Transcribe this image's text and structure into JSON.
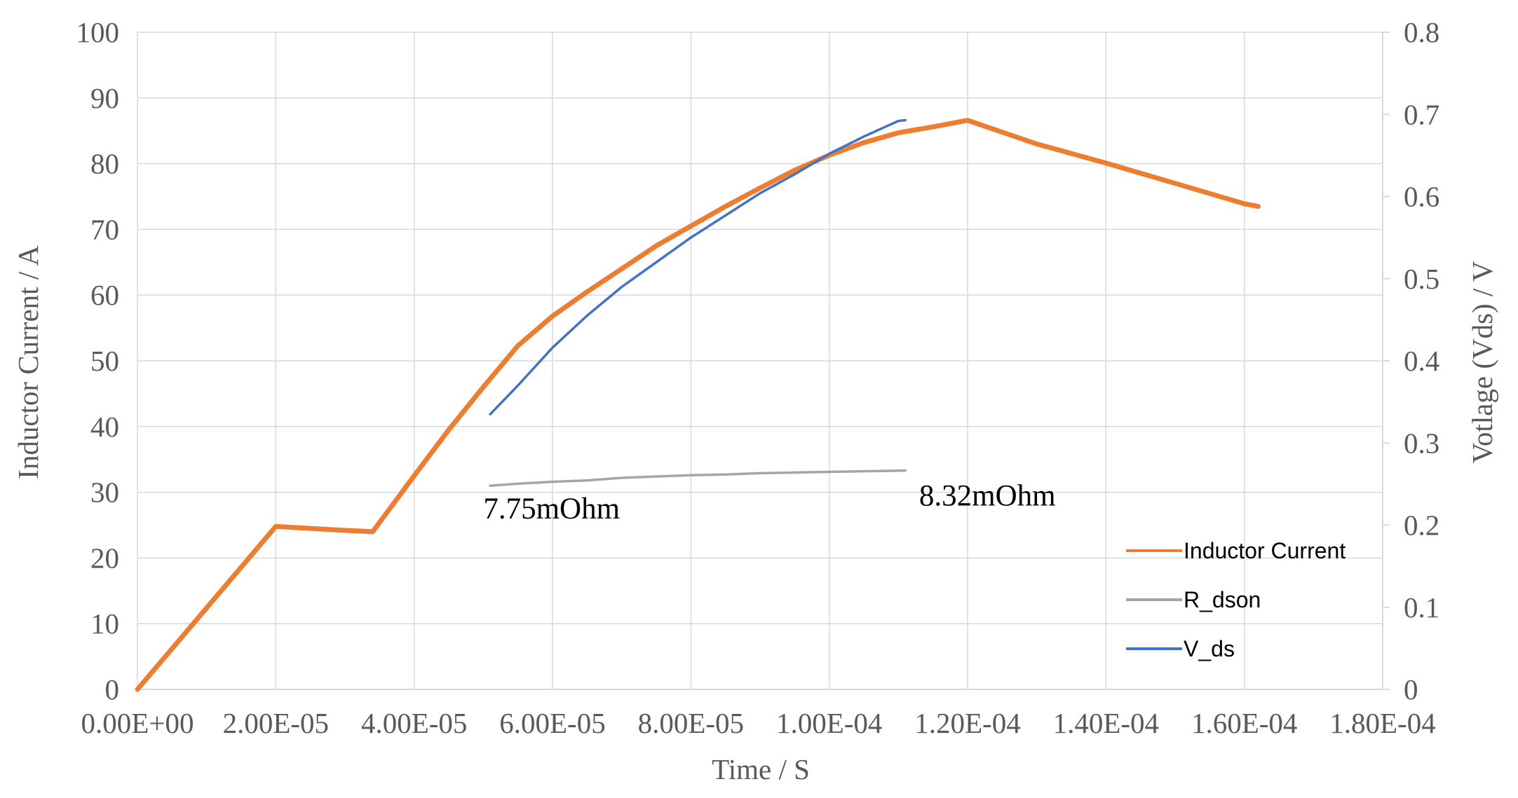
{
  "chart_data": {
    "type": "line",
    "title": "",
    "xlabel": "Time / S",
    "ylabel": "Inductor Current / A",
    "y2label": "Votlage (Vds) / V",
    "xlim": [
      0,
      0.00018
    ],
    "ylim": [
      0,
      100
    ],
    "y2lim": [
      0,
      0.8
    ],
    "x_ticks": [
      0,
      2e-05,
      4e-05,
      6e-05,
      8e-05,
      0.0001,
      0.00012,
      0.00014,
      0.00016,
      0.00018
    ],
    "x_tick_labels": [
      "0.00E+00",
      "2.00E-05",
      "4.00E-05",
      "6.00E-05",
      "8.00E-05",
      "1.00E-04",
      "1.20E-04",
      "1.40E-04",
      "1.60E-04",
      "1.80E-04"
    ],
    "y_ticks": [
      0,
      10,
      20,
      30,
      40,
      50,
      60,
      70,
      80,
      90,
      100
    ],
    "y_tick_labels": [
      "0",
      "10",
      "20",
      "30",
      "40",
      "50",
      "60",
      "70",
      "80",
      "90",
      "100"
    ],
    "y2_ticks": [
      0,
      0.1,
      0.2,
      0.3,
      0.4,
      0.5,
      0.6,
      0.7,
      0.8
    ],
    "y2_tick_labels": [
      "0",
      "0.1",
      "0.2",
      "0.3",
      "0.4",
      "0.5",
      "0.6",
      "0.7",
      "0.8"
    ],
    "grid": true,
    "legend_position": "bottom-right",
    "series": [
      {
        "name": "Inductor Current",
        "color": "#ed7d31",
        "axis": "left",
        "x": [
          0,
          1e-05,
          2e-05,
          2.5e-05,
          3e-05,
          3.4e-05,
          4e-05,
          4.5e-05,
          5e-05,
          5.5e-05,
          6e-05,
          6.5e-05,
          7e-05,
          7.5e-05,
          8e-05,
          8.5e-05,
          9e-05,
          9.5e-05,
          0.0001,
          0.000105,
          0.00011,
          0.000115,
          0.00012,
          0.00013,
          0.00014,
          0.00015,
          0.00016,
          0.000162
        ],
        "y": [
          0,
          12.4,
          24.8,
          24.5,
          24.2,
          24.0,
          32.5,
          39.5,
          46.0,
          52.3,
          56.8,
          60.5,
          64.0,
          67.5,
          70.5,
          73.5,
          76.3,
          79.0,
          81.3,
          83.2,
          84.7,
          85.6,
          86.6,
          83.0,
          80.1,
          77.0,
          73.9,
          73.5
        ]
      },
      {
        "name": "R_dson",
        "color": "#a5a5a5",
        "axis": "left",
        "x": [
          5.1e-05,
          5.5e-05,
          6e-05,
          6.5e-05,
          7e-05,
          7.5e-05,
          8e-05,
          8.5e-05,
          9e-05,
          9.5e-05,
          0.0001,
          0.000105,
          0.000111
        ],
        "y": [
          31.0,
          31.3,
          31.6,
          31.8,
          32.2,
          32.4,
          32.6,
          32.7,
          32.9,
          33.0,
          33.1,
          33.2,
          33.3
        ]
      },
      {
        "name": "V_ds",
        "color": "#4472c4",
        "axis": "right",
        "x": [
          5.1e-05,
          5.5e-05,
          6e-05,
          6.5e-05,
          7e-05,
          7.5e-05,
          8e-05,
          8.5e-05,
          9e-05,
          9.5e-05,
          0.0001,
          0.000105,
          0.00011,
          0.000111
        ],
        "y": [
          0.335,
          0.37,
          0.416,
          0.455,
          0.49,
          0.52,
          0.55,
          0.577,
          0.604,
          0.627,
          0.652,
          0.673,
          0.692,
          0.693
        ]
      }
    ],
    "annotations": [
      {
        "text": "7.75mOhm",
        "x": 5e-05,
        "y": 26.0
      },
      {
        "text": "8.32mOhm",
        "x": 0.000113,
        "y": 28.0
      }
    ]
  }
}
